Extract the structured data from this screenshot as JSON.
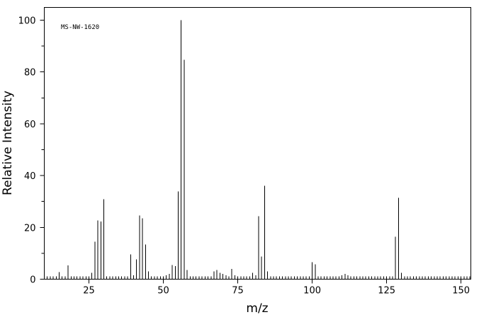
{
  "chart_data": {
    "type": "stem",
    "annotation": "MS-NW-1620",
    "x_label": "m/z",
    "y_label": "Relative Intensity",
    "x": [
      15,
      16,
      17,
      18,
      26,
      27,
      28,
      29,
      30,
      31,
      39,
      40,
      41,
      42,
      43,
      44,
      45,
      50,
      51,
      52,
      53,
      54,
      55,
      56,
      57,
      58,
      67,
      68,
      69,
      70,
      71,
      73,
      74,
      80,
      81,
      82,
      83,
      84,
      85,
      86,
      99,
      100,
      101,
      110,
      111,
      112,
      127,
      128,
      129,
      130
    ],
    "values": [
      2.7,
      1,
      1,
      5.3,
      2.5,
      14.5,
      22.7,
      22.2,
      30.9,
      1,
      9.6,
      1.5,
      7.6,
      24.6,
      23.5,
      13.4,
      3,
      1,
      1.5,
      2,
      5.5,
      5,
      33.9,
      100,
      84.7,
      3.5,
      3,
      3.5,
      2.5,
      2,
      1.5,
      4,
      1.5,
      2.5,
      1.5,
      24.3,
      8.7,
      36,
      3,
      1,
      1,
      6.5,
      5.7,
      1.5,
      2,
      1.5,
      1,
      16.4,
      31.4,
      2.5
    ],
    "color": "#000000",
    "xlim": [
      10,
      153.3
    ],
    "xticks": [
      25,
      50,
      75,
      100,
      125,
      150
    ],
    "ylim": [
      0,
      104.9
    ],
    "yticks": [
      0,
      20,
      40,
      60,
      80,
      100
    ]
  }
}
